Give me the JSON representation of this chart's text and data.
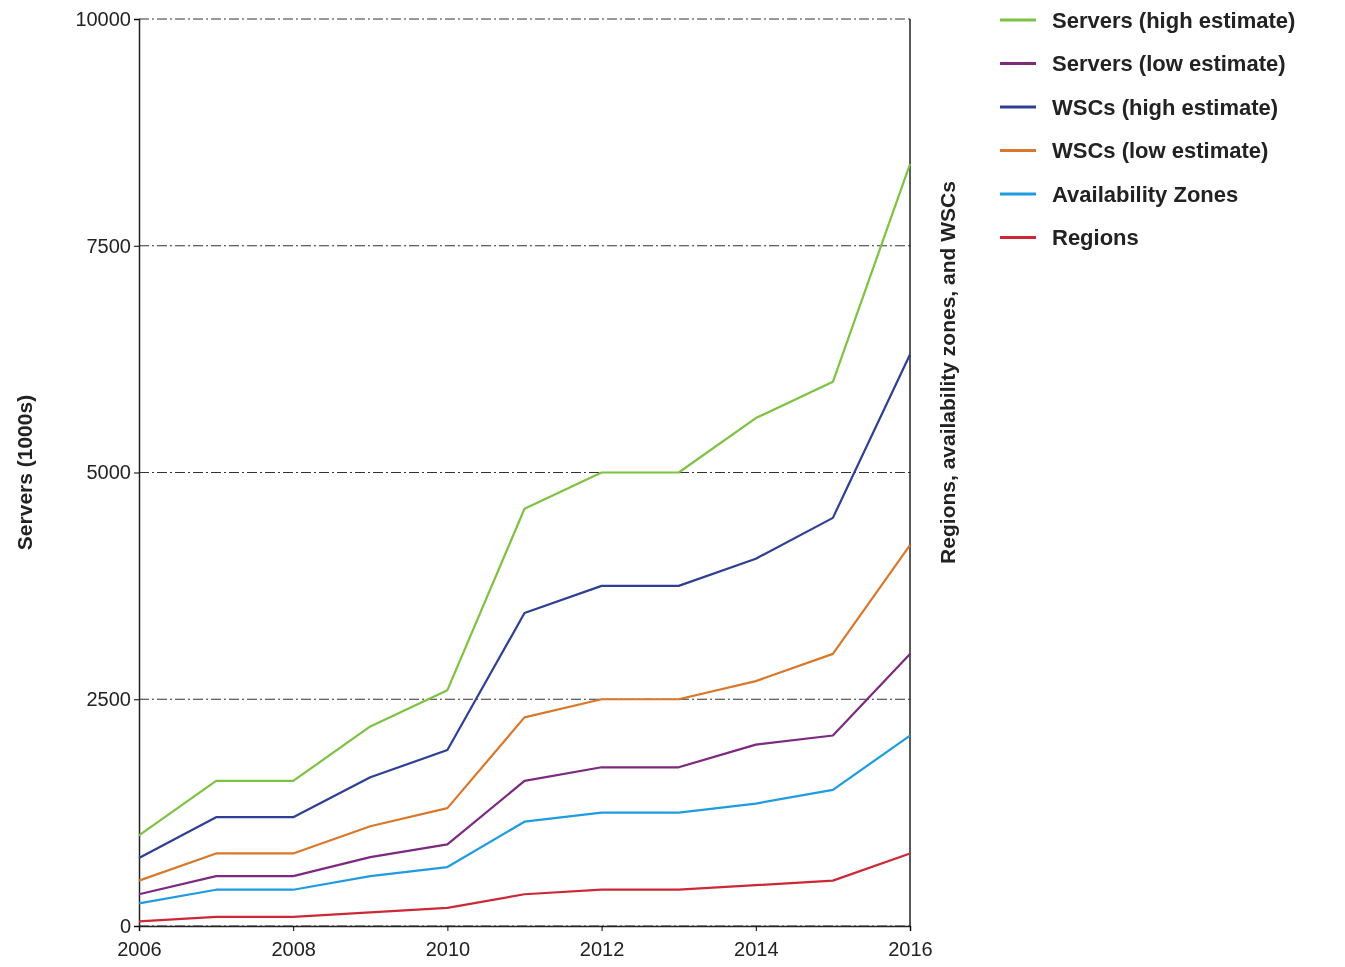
{
  "chart_data": {
    "type": "line",
    "ylabel": "Servers (1000s)",
    "y2label": "Regions, availability zones, and WSCs",
    "x": [
      2006,
      2007,
      2008,
      2009,
      2010,
      2011,
      2012,
      2013,
      2014,
      2015,
      2016
    ],
    "xlim": [
      2006,
      2016
    ],
    "xticks": [
      2006,
      2008,
      2010,
      2012,
      2014,
      2016
    ],
    "ylim": [
      0,
      10000
    ],
    "yticks": [
      0,
      2500,
      5000,
      7500,
      10000
    ],
    "grid": "y",
    "legend": "top right",
    "marker": "none",
    "line_style": "solid",
    "series": [
      {
        "name": "Servers (high estimate)",
        "color": "#7dc242",
        "values": [
          1000,
          1600,
          1600,
          2200,
          2600,
          4600,
          5000,
          5000,
          5600,
          6000,
          8400
        ]
      },
      {
        "name": "Servers (low estimate)",
        "color": "#7b2a7f",
        "values": [
          350,
          550,
          550,
          760,
          900,
          1600,
          1750,
          1750,
          2000,
          2100,
          3000
        ]
      },
      {
        "name": "WSCs (high estimate)",
        "color": "#2e3f94",
        "values": [
          750,
          1200,
          1200,
          1640,
          1940,
          3450,
          3750,
          3750,
          4050,
          4500,
          6300
        ]
      },
      {
        "name": "WSCs (low estimate)",
        "color": "#d9782b",
        "values": [
          500,
          800,
          800,
          1100,
          1300,
          2300,
          2500,
          2500,
          2700,
          3000,
          4200
        ]
      },
      {
        "name": "Availability Zones",
        "color": "#1f9be0",
        "values": [
          250,
          400,
          400,
          550,
          650,
          1150,
          1250,
          1250,
          1350,
          1500,
          2100
        ]
      },
      {
        "name": "Regions",
        "color": "#cc2936",
        "values": [
          50,
          100,
          100,
          150,
          200,
          350,
          400,
          400,
          450,
          500,
          800
        ]
      }
    ]
  }
}
